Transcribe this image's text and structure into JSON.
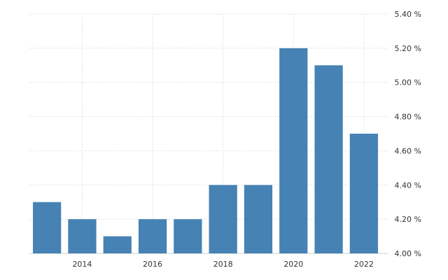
{
  "chart_data": {
    "type": "bar",
    "title": "",
    "xlabel": "",
    "ylabel": "",
    "color": "#4682b4",
    "grid": true,
    "ylim": [
      4.0,
      5.4
    ],
    "y_ticks": [
      4.0,
      4.2,
      4.4,
      4.6,
      4.8,
      5.0,
      5.2,
      5.4
    ],
    "y_tick_labels": [
      "4.00 %",
      "4.20 %",
      "4.40 %",
      "4.60 %",
      "4.80 %",
      "5.00 %",
      "5.20 %",
      "5.40 %"
    ],
    "categories": [
      "2013",
      "2014",
      "2015",
      "2016",
      "2017",
      "2018",
      "2019",
      "2020",
      "2021",
      "2022"
    ],
    "x_tick_labels": [
      "2014",
      "2016",
      "2018",
      "2020",
      "2022"
    ],
    "values": [
      4.3,
      4.2,
      4.1,
      4.2,
      4.2,
      4.4,
      4.4,
      5.2,
      5.1,
      4.7
    ]
  }
}
